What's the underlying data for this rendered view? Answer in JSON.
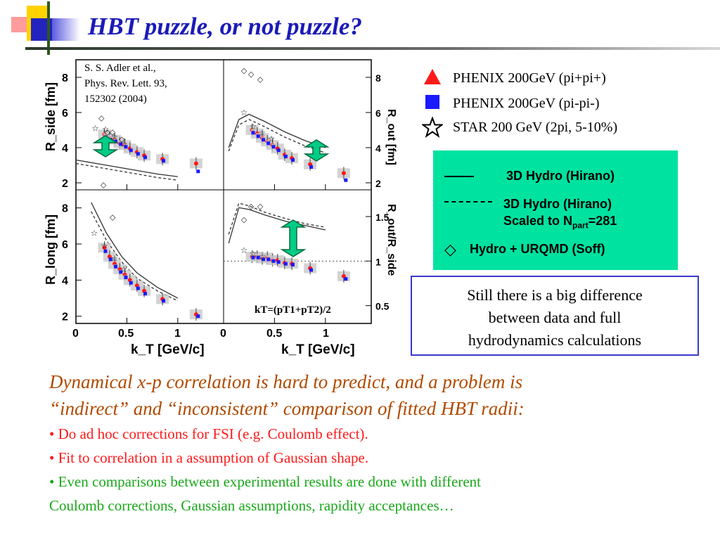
{
  "slide": {
    "title": "HBT puzzle, or not puzzle?"
  },
  "citation": [
    "S. S. Adler et al.,",
    "Phys. Rev. Lett. 93,",
    "152302 (2004)"
  ],
  "chart_data": {
    "type": "scatter",
    "x_axis": {
      "label": "k_T [GeV/c]",
      "range": [
        0,
        1.45
      ],
      "ticks": [
        "0",
        "0.5",
        "1"
      ]
    },
    "kt_formula": "kT=(pT1+pT2)/2",
    "panels": [
      {
        "id": "rside",
        "ylabel": "R_side [fm]",
        "yrange": [
          1.6,
          9
        ],
        "yticks": [
          "2",
          "4",
          "6",
          "8"
        ],
        "series": [
          {
            "name": "PHENIX 200GeV (pi+pi+)",
            "color": "#ff1a1a",
            "x": [
              0.28,
              0.33,
              0.38,
              0.43,
              0.48,
              0.53,
              0.6,
              0.67,
              0.85,
              1.18
            ],
            "y": [
              4.75,
              4.55,
              4.45,
              4.25,
              4.15,
              3.95,
              3.75,
              3.55,
              3.35,
              3.1
            ]
          },
          {
            "name": "PHENIX 200GeV (pi-pi-)",
            "color": "#1a1aff",
            "x": [
              0.29,
              0.34,
              0.39,
              0.44,
              0.49,
              0.54,
              0.61,
              0.68,
              0.86,
              1.2
            ],
            "y": [
              4.6,
              4.45,
              4.35,
              4.2,
              4.05,
              3.85,
              3.65,
              3.45,
              3.25,
              2.65
            ]
          },
          {
            "name": "STAR 200 GeV (2pi, 5-10%)",
            "x": [
              0.19,
              0.29,
              0.38,
              0.47
            ],
            "y": [
              5.1,
              5.05,
              4.6,
              4.2
            ]
          },
          {
            "name": "Hydro + URQMD (Soff)",
            "x": [
              0.25,
              0.31,
              0.36,
              0.45
            ],
            "y": [
              5.7,
              4.9,
              4.9,
              4.5
            ]
          },
          {
            "name": "3D Hydro (Hirano)",
            "x": [
              0,
              0.2,
              0.4,
              0.6,
              0.8,
              1.0
            ],
            "y": [
              3.3,
              3.1,
              2.9,
              2.7,
              2.5,
              2.35
            ]
          },
          {
            "name": "3D Hydro (Hirano) Scaled to Npart=281",
            "x": [
              0,
              0.2,
              0.4,
              0.6,
              0.8,
              1.0
            ],
            "y": [
              3.1,
              2.9,
              2.7,
              2.5,
              2.3,
              2.15
            ]
          }
        ]
      },
      {
        "id": "rout",
        "ylabel": "R_out [fm]",
        "yrange": [
          1.6,
          9
        ],
        "yticks": [
          "2",
          "4",
          "6",
          "8"
        ],
        "series": [
          {
            "name": "PHENIX 200GeV (pi+pi+)",
            "color": "#ff1a1a",
            "x": [
              0.28,
              0.33,
              0.38,
              0.43,
              0.48,
              0.53,
              0.6,
              0.67,
              0.85,
              1.18
            ],
            "y": [
              5.0,
              4.8,
              4.55,
              4.35,
              4.15,
              3.95,
              3.6,
              3.4,
              3.05,
              2.55
            ]
          },
          {
            "name": "PHENIX 200GeV (pi-pi-)",
            "color": "#1a1aff",
            "x": [
              0.29,
              0.34,
              0.39,
              0.44,
              0.49,
              0.54,
              0.61,
              0.68,
              0.86,
              1.2
            ],
            "y": [
              4.85,
              4.65,
              4.45,
              4.25,
              4.05,
              3.85,
              3.5,
              3.3,
              2.9,
              2.15
            ]
          },
          {
            "name": "STAR 200 GeV (2pi, 5-10%)",
            "x": [
              0.2,
              0.29,
              0.38,
              0.47
            ],
            "y": [
              6.0,
              5.2,
              4.85,
              4.5
            ]
          },
          {
            "name": "Hydro + URQMD (Soff)",
            "x": [
              0.2,
              0.27,
              0.36
            ],
            "y": [
              8.4,
              8.2,
              7.9
            ]
          },
          {
            "name": "3D Hydro (Hirano)",
            "x": [
              0.05,
              0.15,
              0.25,
              0.4,
              0.6,
              0.8,
              1.0
            ],
            "y": [
              4.0,
              5.6,
              5.9,
              5.5,
              4.9,
              4.4,
              4.0
            ]
          },
          {
            "name": "3D Hydro (Hirano) Scaled to Npart=281",
            "x": [
              0.05,
              0.15,
              0.25,
              0.4,
              0.6,
              0.8,
              1.0
            ],
            "y": [
              3.8,
              5.3,
              5.6,
              5.2,
              4.6,
              4.1,
              3.7
            ]
          }
        ]
      },
      {
        "id": "rlong",
        "ylabel": "R_long [fm]",
        "yrange": [
          1.6,
          9
        ],
        "yticks": [
          "2",
          "4",
          "6",
          "8"
        ],
        "series": [
          {
            "name": "PHENIX 200GeV (pi+pi+)",
            "color": "#ff1a1a",
            "x": [
              0.28,
              0.33,
              0.38,
              0.43,
              0.48,
              0.53,
              0.6,
              0.67,
              0.85,
              1.18
            ],
            "y": [
              5.8,
              5.3,
              4.9,
              4.6,
              4.3,
              4.0,
              3.7,
              3.4,
              2.95,
              2.1
            ]
          },
          {
            "name": "PHENIX 200GeV (pi-pi-)",
            "color": "#1a1aff",
            "x": [
              0.29,
              0.34,
              0.39,
              0.44,
              0.49,
              0.54,
              0.61,
              0.68,
              0.86,
              1.2
            ],
            "y": [
              5.6,
              5.15,
              4.75,
              4.45,
              4.15,
              3.85,
              3.55,
              3.25,
              2.85,
              2.0
            ]
          },
          {
            "name": "STAR 200 GeV (2pi, 5-10%)",
            "x": [
              0.18,
              0.28,
              0.38,
              0.47
            ],
            "y": [
              6.6,
              5.9,
              5.2,
              4.6
            ]
          },
          {
            "name": "Hydro + URQMD (Soff)",
            "x": [
              0.27,
              0.36
            ],
            "y": [
              9.3,
              7.5
            ]
          },
          {
            "name": "3D Hydro (Hirano)",
            "x": [
              0.15,
              0.3,
              0.45,
              0.6,
              0.8,
              1.0
            ],
            "y": [
              8.3,
              6.6,
              5.3,
              4.4,
              3.6,
              3.0
            ]
          },
          {
            "name": "3D Hydro (Hirano) Scaled to Npart=281",
            "x": [
              0.15,
              0.3,
              0.45,
              0.6,
              0.8,
              1.0
            ],
            "y": [
              7.8,
              6.2,
              5.0,
              4.1,
              3.4,
              2.85
            ]
          }
        ]
      },
      {
        "id": "ratio",
        "ylabel": "R_out/R_side",
        "yrange": [
          0.3,
          1.8
        ],
        "yticks": [
          "0.5",
          "1",
          "1.5"
        ],
        "series": [
          {
            "name": "PHENIX 200GeV (pi+pi+)",
            "color": "#ff1a1a",
            "x": [
              0.28,
              0.33,
              0.38,
              0.43,
              0.48,
              0.53,
              0.6,
              0.67,
              0.85,
              1.18
            ],
            "y": [
              1.05,
              1.05,
              1.03,
              1.04,
              1.01,
              1.01,
              0.98,
              0.97,
              0.92,
              0.83
            ]
          },
          {
            "name": "PHENIX 200GeV (pi-pi-)",
            "color": "#1a1aff",
            "x": [
              0.29,
              0.34,
              0.39,
              0.44,
              0.49,
              0.54,
              0.61,
              0.68,
              0.86,
              1.2
            ],
            "y": [
              1.04,
              1.04,
              1.02,
              1.02,
              1.0,
              0.99,
              0.97,
              0.96,
              0.9,
              0.8
            ]
          },
          {
            "name": "STAR 200 GeV (2pi, 5-10%)",
            "x": [
              0.2,
              0.29,
              0.38
            ],
            "y": [
              1.12,
              1.08,
              1.05
            ]
          },
          {
            "name": "Hydro + URQMD (Soff)",
            "x": [
              0.2,
              0.27,
              0.36
            ],
            "y": [
              1.47,
              1.62,
              1.62
            ]
          },
          {
            "name": "3D Hydro (Hirano)",
            "x": [
              0.05,
              0.15,
              0.25,
              0.4,
              0.6,
              0.8,
              1.0
            ],
            "y": [
              1.2,
              1.6,
              1.58,
              1.52,
              1.45,
              1.4,
              1.35
            ]
          },
          {
            "name": "3D Hydro (Hirano) Scaled to Npart=281",
            "x": [
              0.05,
              0.15,
              0.25,
              0.4,
              0.6,
              0.8,
              1.0
            ],
            "y": [
              1.3,
              1.65,
              1.62,
              1.55,
              1.48,
              1.42,
              1.38
            ]
          }
        ]
      }
    ]
  },
  "legend": {
    "items": [
      {
        "label": "PHENIX 200GeV (pi+pi+)",
        "marker": "triangle",
        "color": "#ff1a1a"
      },
      {
        "label": "PHENIX 200GeV (pi-pi-)",
        "marker": "square",
        "color": "#1a1aff"
      },
      {
        "label": "STAR 200 GeV (2pi, 5-10%)",
        "marker": "star",
        "color": "#000000"
      }
    ]
  },
  "hydro_legend": {
    "solid_label": "3D Hydro (Hirano)",
    "dashed_label": "3D Hydro (Hirano)",
    "dashed_label_2": "Scaled to N",
    "dashed_sub": "part",
    "dashed_value": "=281",
    "diamond_label": "Hydro + URQMD (Soff)",
    "background": "#00e2a0"
  },
  "note": [
    "Still there is a big difference",
    "between data and full",
    "hydrodynamics calculations"
  ],
  "body": {
    "italic_line1": "Dynamical x-p correlation is hard to predict, and a problem is",
    "italic_line2": "“indirect” and “inconsistent” comparison of fitted HBT radii:",
    "bullet1": "• Do ad hoc corrections for FSI (e.g. Coulomb effect).",
    "bullet2": "• Fit to correlation in a assumption of Gaussian shape.",
    "bullet3_line1": "• Even comparisons between experimental results are done with different",
    "bullet3_line2": "Coulomb corrections, Gaussian assumptions, rapidity acceptances…"
  }
}
